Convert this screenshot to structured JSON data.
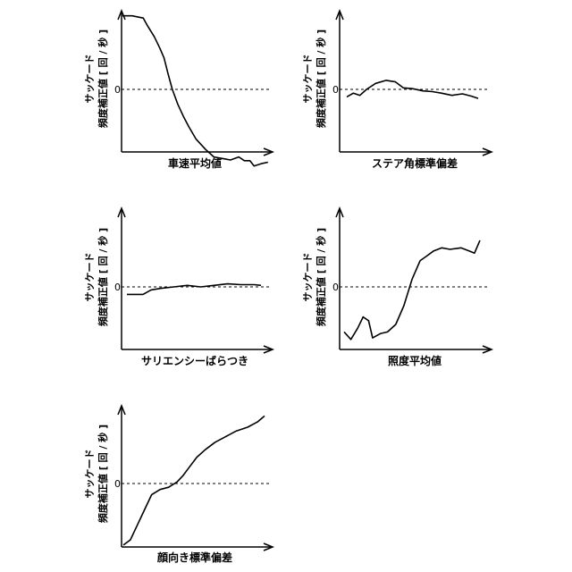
{
  "chart_data": [
    {
      "type": "line",
      "xlabel": "車速平均値",
      "ylabel_line1": "サッケード",
      "ylabel_line2": "頻度補正値 [ 回 / 秒 ]",
      "zero_label": "0",
      "series": [
        {
          "values": [
            [
              0.0,
              0.98
            ],
            [
              0.07,
              0.98
            ],
            [
              0.15,
              0.95
            ],
            [
              0.18,
              0.85
            ],
            [
              0.23,
              0.7
            ],
            [
              0.27,
              0.55
            ],
            [
              0.3,
              0.42
            ],
            [
              0.33,
              0.2
            ],
            [
              0.36,
              0.0
            ],
            [
              0.4,
              -0.2
            ],
            [
              0.44,
              -0.36
            ],
            [
              0.48,
              -0.5
            ],
            [
              0.53,
              -0.66
            ],
            [
              0.6,
              -0.8
            ],
            [
              0.66,
              -0.9
            ],
            [
              0.72,
              -0.92
            ],
            [
              0.78,
              -0.94
            ],
            [
              0.84,
              -0.9
            ],
            [
              0.88,
              -0.95
            ],
            [
              0.92,
              -0.95
            ],
            [
              0.95,
              -1.02
            ],
            [
              1.0,
              -0.99
            ],
            [
              1.05,
              -0.97
            ]
          ]
        }
      ]
    },
    {
      "type": "line",
      "xlabel": "ステア角標準偏差",
      "ylabel_line1": "サッケード",
      "ylabel_line2": "頻度補正値 [ 回 / 秒 ]",
      "zero_label": "0",
      "series": [
        {
          "values": [
            [
              0.0,
              -0.1
            ],
            [
              0.05,
              -0.05
            ],
            [
              0.1,
              -0.08
            ],
            [
              0.15,
              0.0
            ],
            [
              0.22,
              0.08
            ],
            [
              0.3,
              0.12
            ],
            [
              0.37,
              0.1
            ],
            [
              0.43,
              0.02
            ],
            [
              0.5,
              0.01
            ],
            [
              0.58,
              -0.02
            ],
            [
              0.65,
              -0.03
            ],
            [
              0.72,
              -0.05
            ],
            [
              0.8,
              -0.08
            ],
            [
              0.88,
              -0.06
            ],
            [
              0.95,
              -0.09
            ],
            [
              1.0,
              -0.12
            ]
          ]
        }
      ]
    },
    {
      "type": "line",
      "xlabel": "サリエンシーばらつき",
      "ylabel_line1": "サッケード",
      "ylabel_line2": "頻度補正値 [ 回 / 秒 ]",
      "zero_label": "0",
      "series": [
        {
          "values": [
            [
              0.0,
              -0.1
            ],
            [
              0.12,
              -0.1
            ],
            [
              0.18,
              -0.04
            ],
            [
              0.25,
              -0.02
            ],
            [
              0.35,
              0.0
            ],
            [
              0.45,
              0.02
            ],
            [
              0.55,
              0.0
            ],
            [
              0.65,
              0.02
            ],
            [
              0.75,
              0.04
            ],
            [
              0.85,
              0.03
            ],
            [
              0.95,
              0.03
            ],
            [
              1.0,
              0.02
            ]
          ]
        }
      ]
    },
    {
      "type": "line",
      "xlabel": "照度平均値",
      "ylabel_line1": "サッケード",
      "ylabel_line2": "頻度補正値 [ 回 / 秒 ]",
      "zero_label": "0",
      "series": [
        {
          "values": [
            [
              0.0,
              -0.6
            ],
            [
              0.05,
              -0.7
            ],
            [
              0.1,
              -0.55
            ],
            [
              0.14,
              -0.4
            ],
            [
              0.18,
              -0.45
            ],
            [
              0.21,
              -0.68
            ],
            [
              0.27,
              -0.62
            ],
            [
              0.32,
              -0.6
            ],
            [
              0.38,
              -0.5
            ],
            [
              0.44,
              -0.25
            ],
            [
              0.5,
              0.1
            ],
            [
              0.56,
              0.35
            ],
            [
              0.6,
              0.4
            ],
            [
              0.66,
              0.48
            ],
            [
              0.72,
              0.52
            ],
            [
              0.78,
              0.5
            ],
            [
              0.86,
              0.52
            ],
            [
              0.92,
              0.48
            ],
            [
              0.96,
              0.45
            ],
            [
              1.0,
              0.62
            ]
          ]
        }
      ]
    },
    {
      "type": "line",
      "xlabel": "顔向き標準偏差",
      "ylabel_line1": "サッケード",
      "ylabel_line2": "頻度補正値 [ 回 / 秒 ]",
      "zero_label": "0",
      "series": [
        {
          "values": [
            [
              0.0,
              -0.82
            ],
            [
              0.05,
              -0.75
            ],
            [
              0.1,
              -0.55
            ],
            [
              0.15,
              -0.35
            ],
            [
              0.2,
              -0.15
            ],
            [
              0.26,
              -0.08
            ],
            [
              0.32,
              -0.05
            ],
            [
              0.38,
              0.02
            ],
            [
              0.42,
              0.1
            ],
            [
              0.46,
              0.2
            ],
            [
              0.52,
              0.35
            ],
            [
              0.58,
              0.45
            ],
            [
              0.65,
              0.55
            ],
            [
              0.72,
              0.62
            ],
            [
              0.8,
              0.7
            ],
            [
              0.88,
              0.75
            ],
            [
              0.95,
              0.82
            ],
            [
              1.0,
              0.9
            ]
          ]
        }
      ]
    }
  ]
}
